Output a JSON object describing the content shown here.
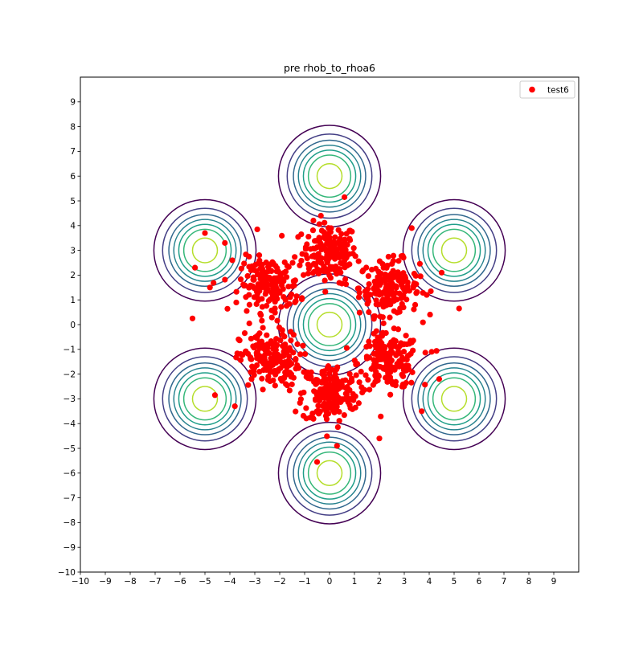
{
  "chart_data": {
    "type": "scatter",
    "title": "pre rhob_to_rhoa6",
    "xlabel": "",
    "ylabel": "",
    "xlim": [
      -10,
      10
    ],
    "ylim": [
      -10,
      10
    ],
    "xticks": [
      -10,
      -9,
      -8,
      -7,
      -6,
      -5,
      -4,
      -3,
      -2,
      -1,
      0,
      1,
      2,
      3,
      4,
      5,
      6,
      7,
      8,
      9
    ],
    "yticks": [
      -10,
      -9,
      -8,
      -7,
      -6,
      -5,
      -4,
      -3,
      -2,
      -1,
      0,
      1,
      2,
      3,
      4,
      5,
      6,
      7,
      8,
      9
    ],
    "grid": false,
    "legend": {
      "position": "top-right",
      "entries": [
        {
          "label": "test6",
          "color": "#ff0000",
          "marker": "circle"
        }
      ]
    },
    "contours": {
      "centers": [
        [
          0,
          0
        ],
        [
          0,
          6
        ],
        [
          0,
          -6
        ],
        [
          5,
          3
        ],
        [
          5,
          -3
        ],
        [
          -5,
          3
        ],
        [
          -5,
          -3
        ]
      ],
      "radii": [
        2.05,
        1.7,
        1.45,
        1.25,
        1.05,
        0.85,
        0.5
      ],
      "colors": [
        "#440154",
        "#433e85",
        "#31688e",
        "#26828e",
        "#1f9e89",
        "#35b779",
        "#b5de2b"
      ]
    },
    "series": [
      {
        "name": "test6",
        "color": "#ff0000",
        "clusters": [
          {
            "center": [
              0.0,
              2.9
            ],
            "spread": [
              0.55,
              0.6
            ],
            "count": 180
          },
          {
            "center": [
              2.4,
              1.5
            ],
            "spread": [
              0.6,
              0.55
            ],
            "count": 180
          },
          {
            "center": [
              2.4,
              -1.5
            ],
            "spread": [
              0.6,
              0.55
            ],
            "count": 180
          },
          {
            "center": [
              0.0,
              -2.8
            ],
            "spread": [
              0.55,
              0.6
            ],
            "count": 180
          },
          {
            "center": [
              -2.4,
              -1.4
            ],
            "spread": [
              0.6,
              0.55
            ],
            "count": 180
          },
          {
            "center": [
              -2.4,
              1.6
            ],
            "spread": [
              0.6,
              0.55
            ],
            "count": 180
          }
        ],
        "outliers": [
          [
            -5.0,
            3.7
          ],
          [
            -5.4,
            2.3
          ],
          [
            -5.5,
            0.25
          ],
          [
            -4.6,
            -2.85
          ],
          [
            0.6,
            5.15
          ],
          [
            4.5,
            2.1
          ],
          [
            5.2,
            0.65
          ],
          [
            -0.5,
            -5.55
          ],
          [
            2.0,
            -4.6
          ],
          [
            4.4,
            -2.2
          ],
          [
            3.7,
            -3.5
          ],
          [
            -4.2,
            3.3
          ],
          [
            -3.8,
            -3.3
          ],
          [
            -4.8,
            1.5
          ],
          [
            3.3,
            3.9
          ],
          [
            -2.9,
            3.85
          ],
          [
            0.3,
            -4.9
          ],
          [
            4.1,
            -1.1
          ],
          [
            -3.9,
            2.6
          ],
          [
            3.9,
            1.2
          ]
        ]
      }
    ]
  }
}
